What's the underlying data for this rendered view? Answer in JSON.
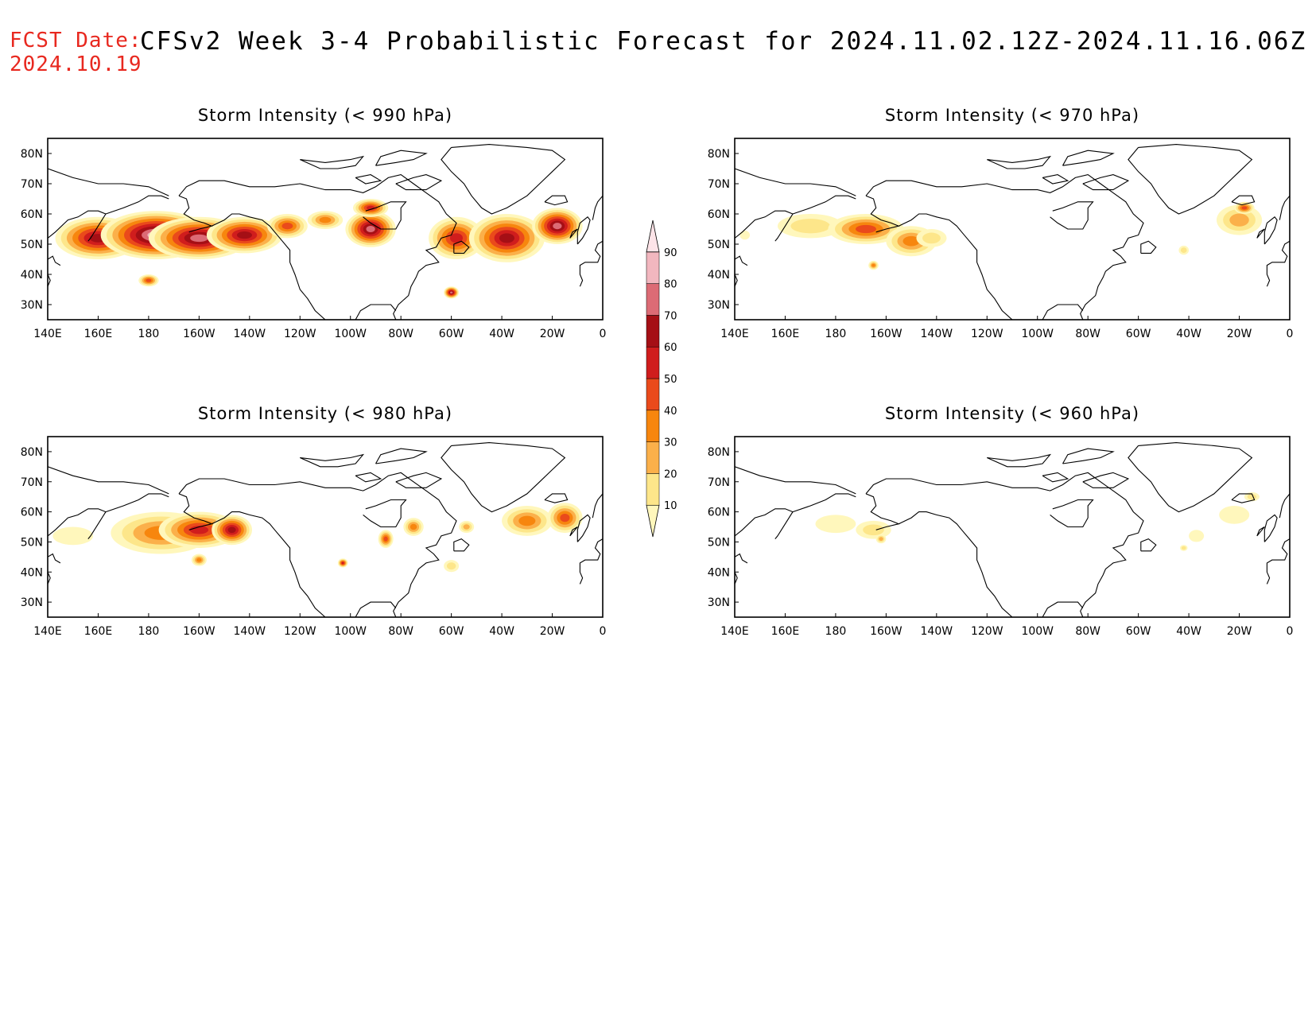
{
  "header": {
    "fcst_label": "FCST Date:",
    "fcst_date": "2024.10.19",
    "title": "CFSv2 Week 3-4 Probabilistic Forecast for 2024.11.02.12Z-2024.11.16.06Z"
  },
  "axes": {
    "x_ticks": [
      "140E",
      "160E",
      "180",
      "160W",
      "140W",
      "120W",
      "100W",
      "80W",
      "60W",
      "40W",
      "20W",
      "0"
    ],
    "x_values": [
      140,
      160,
      180,
      200,
      220,
      240,
      260,
      280,
      300,
      320,
      340,
      360
    ],
    "y_ticks": [
      "80N",
      "70N",
      "60N",
      "50N",
      "40N",
      "30N"
    ],
    "y_values": [
      80,
      70,
      60,
      50,
      40,
      30
    ],
    "lon_range": [
      140,
      360
    ],
    "lat_range": [
      25,
      85
    ]
  },
  "colorbar": {
    "levels": [
      10,
      20,
      30,
      40,
      50,
      60,
      70,
      80,
      90
    ],
    "labels": [
      "10",
      "20",
      "30",
      "40",
      "50",
      "60",
      "70",
      "80",
      "90"
    ],
    "colors": [
      "#fff7bc",
      "#fde68a",
      "#fbb04a",
      "#f7860e",
      "#ea4a1b",
      "#d01d1d",
      "#a50f15",
      "#dc6b75",
      "#f2b7bf",
      "#fde4e8"
    ]
  },
  "panels": [
    {
      "id": "p990",
      "title": "Storm Intensity (< 990 hPa)",
      "blobs": [
        {
          "lon": 160,
          "lat": 52,
          "w": 34,
          "h": 14,
          "p": 70
        },
        {
          "lon": 183,
          "lat": 53,
          "w": 44,
          "h": 16,
          "p": 92
        },
        {
          "lon": 200,
          "lat": 52,
          "w": 40,
          "h": 14,
          "p": 85
        },
        {
          "lon": 218,
          "lat": 53,
          "w": 30,
          "h": 12,
          "p": 75
        },
        {
          "lon": 235,
          "lat": 56,
          "w": 16,
          "h": 8,
          "p": 55
        },
        {
          "lon": 250,
          "lat": 58,
          "w": 14,
          "h": 6,
          "p": 45
        },
        {
          "lon": 268,
          "lat": 55,
          "w": 20,
          "h": 12,
          "p": 80
        },
        {
          "lon": 268,
          "lat": 62,
          "w": 14,
          "h": 6,
          "p": 60
        },
        {
          "lon": 302,
          "lat": 52,
          "w": 22,
          "h": 14,
          "p": 65
        },
        {
          "lon": 322,
          "lat": 52,
          "w": 30,
          "h": 16,
          "p": 75
        },
        {
          "lon": 342,
          "lat": 56,
          "w": 20,
          "h": 12,
          "p": 82
        },
        {
          "lon": 300,
          "lat": 34,
          "w": 6,
          "h": 4,
          "p": 85
        },
        {
          "lon": 180,
          "lat": 38,
          "w": 8,
          "h": 4,
          "p": 50
        }
      ]
    },
    {
      "id": "p970",
      "title": "Storm Intensity (< 970 hPa)",
      "blobs": [
        {
          "lon": 170,
          "lat": 56,
          "w": 26,
          "h": 8,
          "p": 28
        },
        {
          "lon": 192,
          "lat": 55,
          "w": 30,
          "h": 10,
          "p": 55
        },
        {
          "lon": 210,
          "lat": 51,
          "w": 20,
          "h": 10,
          "p": 40
        },
        {
          "lon": 218,
          "lat": 52,
          "w": 12,
          "h": 6,
          "p": 20
        },
        {
          "lon": 195,
          "lat": 43,
          "w": 4,
          "h": 3,
          "p": 45
        },
        {
          "lon": 340,
          "lat": 58,
          "w": 18,
          "h": 10,
          "p": 30
        },
        {
          "lon": 342,
          "lat": 62,
          "w": 8,
          "h": 4,
          "p": 50
        },
        {
          "lon": 318,
          "lat": 48,
          "w": 4,
          "h": 3,
          "p": 20
        },
        {
          "lon": 144,
          "lat": 53,
          "w": 4,
          "h": 3,
          "p": 15
        }
      ]
    },
    {
      "id": "p980",
      "title": "Storm Intensity (< 980 hPa)",
      "blobs": [
        {
          "lon": 150,
          "lat": 52,
          "w": 16,
          "h": 6,
          "p": 18
        },
        {
          "lon": 185,
          "lat": 53,
          "w": 40,
          "h": 14,
          "p": 45
        },
        {
          "lon": 200,
          "lat": 54,
          "w": 32,
          "h": 12,
          "p": 62
        },
        {
          "lon": 213,
          "lat": 54,
          "w": 16,
          "h": 10,
          "p": 70
        },
        {
          "lon": 200,
          "lat": 44,
          "w": 6,
          "h": 4,
          "p": 48
        },
        {
          "lon": 285,
          "lat": 55,
          "w": 8,
          "h": 6,
          "p": 40
        },
        {
          "lon": 274,
          "lat": 51,
          "w": 6,
          "h": 6,
          "p": 55
        },
        {
          "lon": 257,
          "lat": 43,
          "w": 4,
          "h": 3,
          "p": 60
        },
        {
          "lon": 330,
          "lat": 57,
          "w": 20,
          "h": 10,
          "p": 40
        },
        {
          "lon": 345,
          "lat": 58,
          "w": 14,
          "h": 10,
          "p": 50
        },
        {
          "lon": 306,
          "lat": 55,
          "w": 6,
          "h": 4,
          "p": 30
        },
        {
          "lon": 300,
          "lat": 42,
          "w": 6,
          "h": 4,
          "p": 20
        }
      ]
    },
    {
      "id": "p960",
      "title": "Storm Intensity (< 960 hPa)",
      "blobs": [
        {
          "lon": 180,
          "lat": 56,
          "w": 16,
          "h": 6,
          "p": 15
        },
        {
          "lon": 195,
          "lat": 54,
          "w": 14,
          "h": 6,
          "p": 22
        },
        {
          "lon": 198,
          "lat": 51,
          "w": 4,
          "h": 3,
          "p": 35
        },
        {
          "lon": 338,
          "lat": 59,
          "w": 12,
          "h": 6,
          "p": 18
        },
        {
          "lon": 345,
          "lat": 65,
          "w": 6,
          "h": 3,
          "p": 25
        },
        {
          "lon": 323,
          "lat": 52,
          "w": 6,
          "h": 4,
          "p": 15
        },
        {
          "lon": 318,
          "lat": 48,
          "w": 3,
          "h": 2,
          "p": 20
        }
      ]
    }
  ]
}
